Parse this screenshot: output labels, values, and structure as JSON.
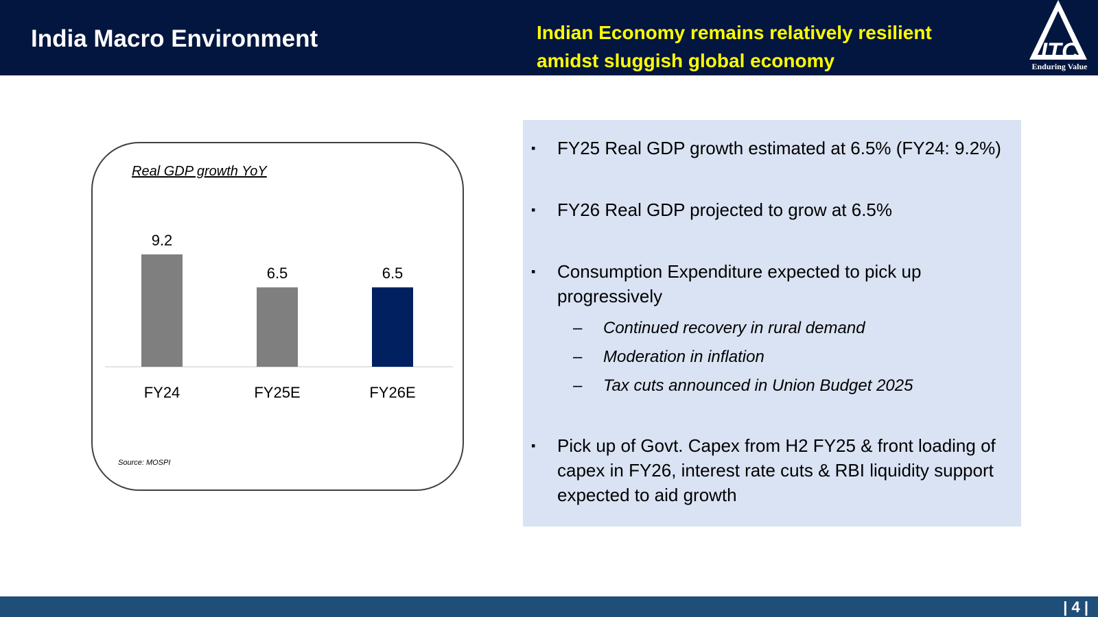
{
  "header": {
    "title": "India Macro Environment",
    "tagline_line1": "Indian Economy remains relatively resilient",
    "tagline_line2": "amidst sluggish global economy",
    "logo_text": "Enduring Value",
    "background_color": "#03163f",
    "tagline_color": "#ffff00"
  },
  "chart_data": {
    "type": "bar",
    "title": "Real GDP growth YoY",
    "categories": [
      "FY24",
      "FY25E",
      "FY26E"
    ],
    "values": [
      9.2,
      6.5,
      6.5
    ],
    "bar_colors": [
      "#7f7f7f",
      "#7f7f7f",
      "#002060"
    ],
    "data_labels": [
      "9.2",
      "6.5",
      "6.5"
    ],
    "xlabel": "",
    "ylabel": "",
    "ylim": [
      0,
      10
    ],
    "grid": false,
    "source": "Source: MOSPI"
  },
  "panel": {
    "background_color": "#dae3f3",
    "bullets": [
      "FY25 Real GDP growth estimated at 6.5% (FY24: 9.2%)",
      "FY26 Real GDP projected to grow at 6.5%",
      "Consumption Expenditure expected to pick up progressively",
      "Pick up of Govt. Capex from H2 FY25 & front loading of capex in FY26, interest rate cuts & RBI liquidity support expected to aid growth"
    ],
    "sub_bullets": [
      "Continued recovery in rural demand",
      "Moderation in inflation",
      "Tax cuts announced in Union Budget 2025"
    ],
    "bullet_marker": "▪",
    "sub_marker": "–"
  },
  "footer": {
    "page_number": "| 4 |",
    "background_color": "#1f4e79"
  }
}
